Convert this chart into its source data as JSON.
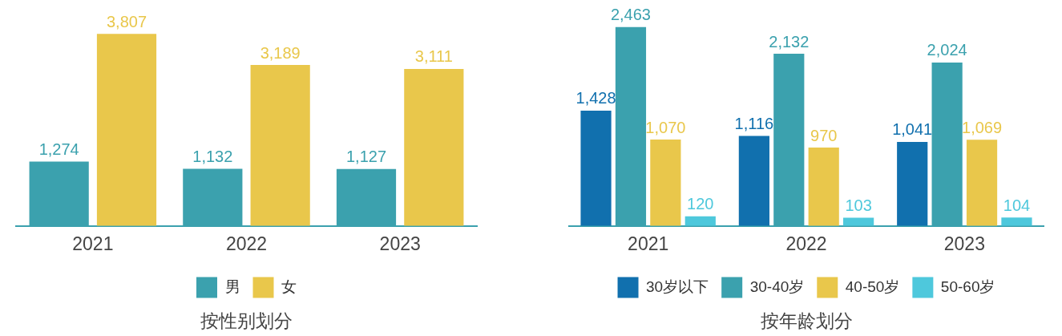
{
  "chart_data": [
    {
      "type": "bar",
      "title": "按性别划分",
      "categories": [
        "2021",
        "2022",
        "2023"
      ],
      "series": [
        {
          "name": "男",
          "color": "#3ba1ae",
          "values": [
            1274,
            1132,
            1127
          ],
          "value_labels": [
            "1,274",
            "1,132",
            "1,127"
          ]
        },
        {
          "name": "女",
          "color": "#e9c74b",
          "values": [
            3807,
            3189,
            3111
          ],
          "value_labels": [
            "3,807",
            "3,189",
            "3,111"
          ]
        }
      ],
      "legend": "bottom"
    },
    {
      "type": "bar",
      "title": "按年龄划分",
      "categories": [
        "2021",
        "2022",
        "2023"
      ],
      "series": [
        {
          "name": "30岁以下",
          "color": "#1170ae",
          "values": [
            1428,
            1116,
            1041
          ],
          "value_labels": [
            "1,428",
            "1,116",
            "1,041"
          ]
        },
        {
          "name": "30-40岁",
          "color": "#3ba1ae",
          "values": [
            2463,
            2132,
            2024
          ],
          "value_labels": [
            "2,463",
            "2,132",
            "2,024"
          ]
        },
        {
          "name": "40-50岁",
          "color": "#e9c74b",
          "values": [
            1070,
            970,
            1069
          ],
          "value_labels": [
            "1,070",
            "970",
            "1,069"
          ]
        },
        {
          "name": "50-60岁",
          "color": "#4ec8dc",
          "values": [
            120,
            103,
            104
          ],
          "value_labels": [
            "120",
            "103",
            "104"
          ]
        }
      ],
      "legend": "bottom"
    }
  ]
}
